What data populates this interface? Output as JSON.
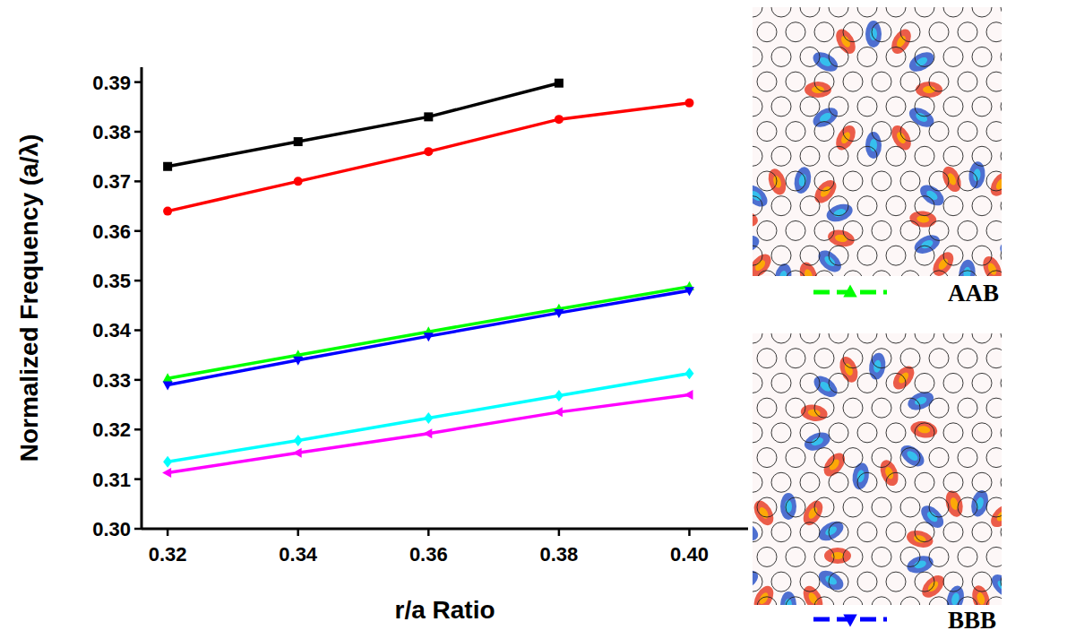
{
  "chart_data": {
    "type": "line",
    "x_label": "r/a Ratio",
    "y_label": "Normalized Frequency (a/λ)",
    "x": [
      0.32,
      0.34,
      0.36,
      0.38,
      0.4
    ],
    "xlim": [
      0.316,
      0.409
    ],
    "xticks": [
      0.32,
      0.34,
      0.36,
      0.38,
      {
        "value": 0.4,
        "label": "0.40"
      }
    ],
    "ylim": [
      0.3,
      0.393
    ],
    "yticks": [
      {
        "value": 0.3,
        "label": "0.30"
      },
      0.31,
      0.32,
      0.33,
      0.34,
      0.35,
      0.36,
      0.37,
      0.38,
      0.39
    ],
    "legend": "right",
    "series": [
      {
        "color": "#000000",
        "marker": "square",
        "line_style": "solid",
        "values": [
          0.373,
          0.378,
          0.383,
          0.3898,
          null
        ]
      },
      {
        "color": "#ff0000",
        "marker": "circle",
        "line_style": "solid",
        "values": [
          0.364,
          0.37,
          0.376,
          0.3825,
          0.3858
        ]
      },
      {
        "name": "AAB",
        "color": "#00ff00",
        "marker": "triangle-up",
        "line_style": "solid",
        "values": [
          0.3303,
          0.335,
          0.3397,
          0.3443,
          0.3488
        ]
      },
      {
        "name": "BBB",
        "color": "#0000ff",
        "marker": "triangle-down",
        "line_style": "solid",
        "values": [
          0.329,
          0.334,
          0.3388,
          0.3435,
          0.348
        ]
      },
      {
        "color": "#00ffff",
        "marker": "diamond",
        "line_style": "solid",
        "values": [
          0.3135,
          0.3178,
          0.3223,
          0.3268,
          0.3313
        ]
      },
      {
        "color": "#ff00ff",
        "marker": "triangle-left",
        "line_style": "solid",
        "values": [
          0.3113,
          0.3153,
          0.3192,
          0.3235,
          0.327
        ]
      }
    ]
  }
}
